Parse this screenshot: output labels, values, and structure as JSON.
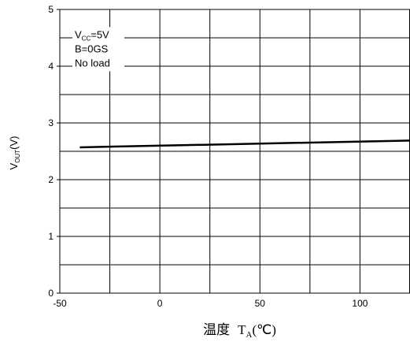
{
  "chart_data": {
    "type": "line",
    "xlabel": {
      "prefix": "温度",
      "symbol": "T",
      "subscript": "A",
      "unit": "(℃)"
    },
    "ylabel": {
      "symbol": "V",
      "subscript": "OUT",
      "unit": "(V)"
    },
    "xlim": [
      -50,
      125
    ],
    "ylim": [
      0,
      5
    ],
    "x_grid_step": 25,
    "y_grid_step": 0.5,
    "x_ticks": [
      -50,
      0,
      50,
      100
    ],
    "y_ticks": [
      0,
      1,
      2,
      3,
      4,
      5
    ],
    "grid": true,
    "annotations": [
      {
        "symbol": "V",
        "subscript": "CC",
        "text": "=5V"
      },
      {
        "text": "B=0GS"
      },
      {
        "text": "No load"
      }
    ],
    "series": [
      {
        "color": "#000000",
        "x": [
          -40,
          125
        ],
        "y": [
          2.57,
          2.69
        ]
      }
    ]
  }
}
